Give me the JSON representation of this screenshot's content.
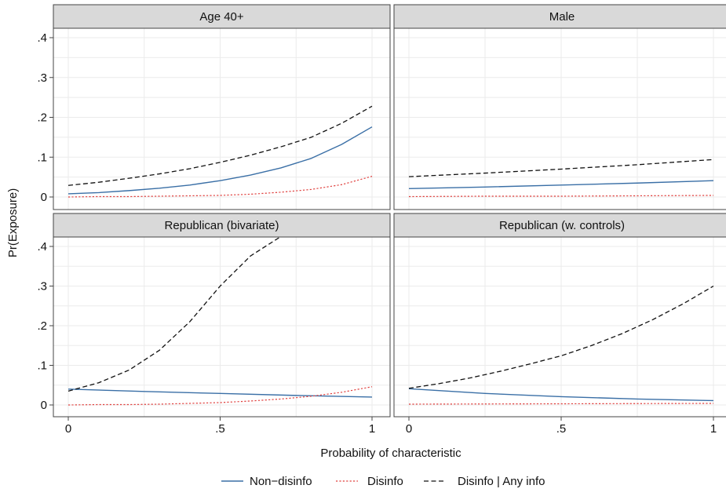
{
  "chart_data": {
    "type": "line",
    "xlabel": "Probability of characteristic",
    "ylabel": "Pr(Exposure)",
    "xlim": [
      0,
      1
    ],
    "ylim": [
      0,
      0.4
    ],
    "x_ticks": [
      0,
      0.5,
      1
    ],
    "x_tick_labels": [
      "0",
      ".5",
      "1"
    ],
    "y_ticks": [
      0,
      0.1,
      0.2,
      0.3,
      0.4
    ],
    "y_tick_labels": [
      "0",
      ".1",
      ".2",
      ".3",
      ".4"
    ],
    "grid": true,
    "legend": {
      "placement": "bottom",
      "entries": [
        {
          "label": "Non−disinfo",
          "color": "#3a6fa6",
          "style": "solid"
        },
        {
          "label": "Disinfo",
          "color": "#e0413f",
          "style": "dotted"
        },
        {
          "label": "Disinfo | Any info",
          "color": "#111111",
          "style": "dashed"
        }
      ]
    },
    "panels": [
      {
        "title": "Age 40+",
        "series": [
          {
            "name": "Non−disinfo",
            "x": [
              0,
              0.1,
              0.2,
              0.3,
              0.4,
              0.5,
              0.6,
              0.7,
              0.8,
              0.9,
              1.0
            ],
            "values": [
              0.008,
              0.011,
              0.016,
              0.022,
              0.03,
              0.041,
              0.055,
              0.073,
              0.097,
              0.132,
              0.176
            ]
          },
          {
            "name": "Disinfo",
            "x": [
              0,
              0.1,
              0.2,
              0.3,
              0.4,
              0.5,
              0.6,
              0.7,
              0.8,
              0.9,
              1.0
            ],
            "values": [
              0.0,
              0.001,
              0.001,
              0.002,
              0.003,
              0.004,
              0.007,
              0.012,
              0.019,
              0.031,
              0.052
            ]
          },
          {
            "name": "Disinfo | Any info",
            "x": [
              0,
              0.1,
              0.2,
              0.3,
              0.4,
              0.5,
              0.6,
              0.7,
              0.8,
              0.9,
              1.0
            ],
            "values": [
              0.029,
              0.037,
              0.047,
              0.058,
              0.071,
              0.087,
              0.105,
              0.126,
              0.15,
              0.185,
              0.228
            ]
          }
        ]
      },
      {
        "title": "Male",
        "series": [
          {
            "name": "Non−disinfo",
            "x": [
              0,
              0.25,
              0.5,
              0.75,
              1.0
            ],
            "values": [
              0.021,
              0.025,
              0.03,
              0.035,
              0.041
            ]
          },
          {
            "name": "Disinfo",
            "x": [
              0,
              0.25,
              0.5,
              0.75,
              1.0
            ],
            "values": [
              0.001,
              0.002,
              0.002,
              0.003,
              0.004
            ]
          },
          {
            "name": "Disinfo | Any info",
            "x": [
              0,
              0.25,
              0.5,
              0.75,
              1.0
            ],
            "values": [
              0.051,
              0.06,
              0.07,
              0.081,
              0.094
            ]
          }
        ]
      },
      {
        "title": "Republican (bivariate)",
        "series": [
          {
            "name": "Non−disinfo",
            "x": [
              0,
              0.25,
              0.5,
              0.75,
              1.0
            ],
            "values": [
              0.04,
              0.034,
              0.029,
              0.024,
              0.02
            ]
          },
          {
            "name": "Disinfo",
            "x": [
              0,
              0.1,
              0.2,
              0.3,
              0.4,
              0.5,
              0.6,
              0.7,
              0.8,
              0.9,
              1.0
            ],
            "values": [
              0.0,
              0.001,
              0.001,
              0.002,
              0.004,
              0.006,
              0.01,
              0.015,
              0.022,
              0.032,
              0.046
            ]
          },
          {
            "name": "Disinfo | Any info",
            "x": [
              0,
              0.1,
              0.2,
              0.3,
              0.4,
              0.5,
              0.6,
              0.7,
              0.74
            ],
            "values": [
              0.035,
              0.056,
              0.088,
              0.138,
              0.21,
              0.3,
              0.376,
              0.425,
              0.44
            ]
          }
        ]
      },
      {
        "title": "Republican (w. controls)",
        "series": [
          {
            "name": "Non−disinfo",
            "x": [
              0,
              0.25,
              0.5,
              0.75,
              1.0
            ],
            "values": [
              0.041,
              0.029,
              0.021,
              0.015,
              0.011
            ]
          },
          {
            "name": "Disinfo",
            "x": [
              0,
              0.5,
              1.0
            ],
            "values": [
              0.002,
              0.003,
              0.004
            ]
          },
          {
            "name": "Disinfo | Any info",
            "x": [
              0,
              0.1,
              0.2,
              0.3,
              0.4,
              0.5,
              0.6,
              0.7,
              0.8,
              0.9,
              1.0
            ],
            "values": [
              0.042,
              0.054,
              0.068,
              0.085,
              0.104,
              0.124,
              0.15,
              0.18,
              0.215,
              0.255,
              0.3
            ]
          }
        ]
      }
    ]
  }
}
